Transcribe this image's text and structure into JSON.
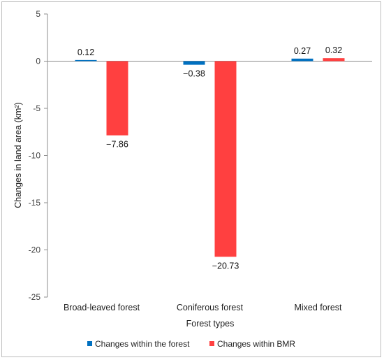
{
  "chart_data": {
    "type": "bar",
    "xlabel": "Forest types",
    "ylabel": "Changes in land area (km²)",
    "ylim": [
      -25,
      5
    ],
    "yticks": [
      5,
      0,
      -5,
      -10,
      -15,
      -20,
      -25
    ],
    "categories": [
      "Broad-leaved forest",
      "Coniferous forest",
      "Mixed forest"
    ],
    "series": [
      {
        "name": "Changes within the forest",
        "values": [
          0.12,
          -0.38,
          0.27
        ],
        "labels": [
          "0.12",
          "−0.38",
          "0.27"
        ],
        "color": "#0070C0"
      },
      {
        "name": "Changes within BMR",
        "values": [
          -7.86,
          -20.73,
          0.32
        ],
        "labels": [
          "−7.86",
          "−20.73",
          "0.32"
        ],
        "color": "#FF4040"
      }
    ],
    "grid": false,
    "legend": "bottom"
  }
}
